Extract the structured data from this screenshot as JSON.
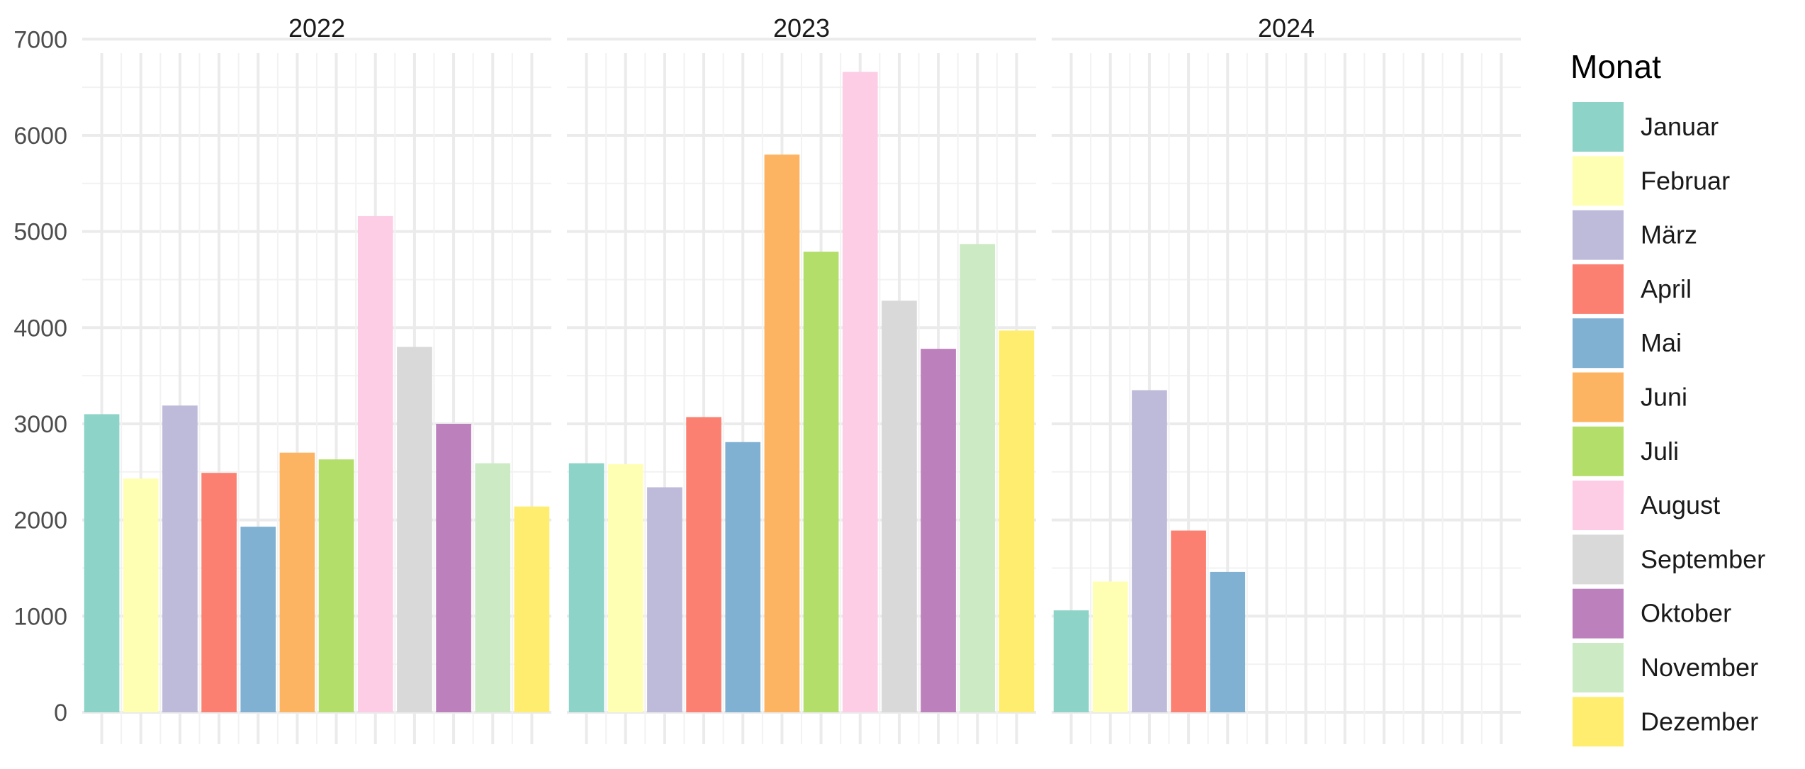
{
  "chart_data": {
    "type": "bar",
    "facets": [
      "2022",
      "2023",
      "2024"
    ],
    "categories": [
      "Januar",
      "Februar",
      "März",
      "April",
      "Mai",
      "Juni",
      "Juli",
      "August",
      "September",
      "Oktober",
      "November",
      "Dezember"
    ],
    "series": [
      {
        "facet": "2022",
        "values": [
          3100,
          2430,
          3190,
          2490,
          1930,
          2700,
          2630,
          5160,
          3800,
          3000,
          2590,
          2140
        ]
      },
      {
        "facet": "2023",
        "values": [
          2590,
          2580,
          2340,
          3070,
          2810,
          5800,
          4790,
          6660,
          4280,
          3780,
          4870,
          3970
        ]
      },
      {
        "facet": "2024",
        "values": [
          1060,
          1360,
          3350,
          1890,
          1460,
          null,
          null,
          null,
          null,
          null,
          null,
          null
        ]
      }
    ],
    "colors": [
      "#8dd3c7",
      "#ffffb3",
      "#bebada",
      "#fb8072",
      "#80b1d3",
      "#fdb462",
      "#b3de69",
      "#fccde5",
      "#d9d9d9",
      "#bc80bd",
      "#ccebc5",
      "#ffed6f"
    ],
    "title": "",
    "xlabel": "",
    "ylabel": "",
    "ylim": [
      0,
      7400
    ],
    "yticks": [
      0,
      1000,
      2000,
      3000,
      4000,
      5000,
      6000,
      7000
    ],
    "grid": true,
    "legend": {
      "title": "Monat",
      "position": "right"
    }
  }
}
